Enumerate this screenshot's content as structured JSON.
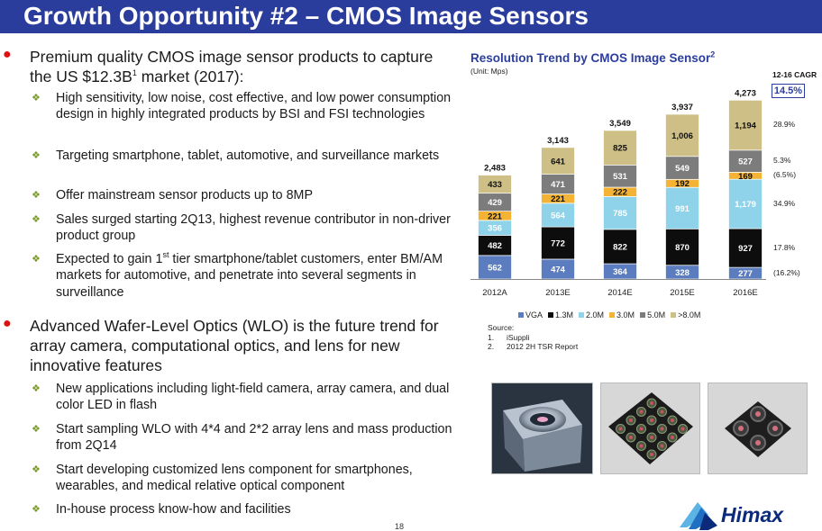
{
  "title": "Growth Opportunity #2 – CMOS Image Sensors",
  "bullets": [
    {
      "pre": "Premium quality CMOS image sensor products to capture the US $12.3B",
      "sup": "1",
      "post": " market (2017):",
      "subs": [
        {
          "pre": "High sensitivity, low noise, cost effective, and low power consumption design in highly integrated products by BSI and FSI technologies"
        },
        {
          "pre": "Targeting smartphone, tablet, automotive, and surveillance markets"
        },
        {
          "pre": "Offer mainstream sensor products up to 8MP"
        },
        {
          "pre": "Sales surged starting 2Q13, highest revenue contributor in non-driver product group"
        },
        {
          "pre": "Expected to gain 1",
          "sup": "st",
          "post": " tier smartphone/tablet customers, enter BM/AM markets for automotive, and penetrate into several segments in surveillance"
        }
      ]
    },
    {
      "pre": "Advanced Wafer-Level Optics (WLO) is the future trend for array camera, computational optics, and lens for new innovative features",
      "subs": [
        {
          "pre": "New applications including light-field camera, array camera, and dual color LED in flash"
        },
        {
          "pre": "Start sampling WLO with 4*4 and 2*2 array lens and mass production from 2Q14"
        },
        {
          "pre": "Start developing customized lens component for smartphones, wearables, and medical relative optical component"
        },
        {
          "pre": "In-house process know-how and facilities"
        }
      ]
    }
  ],
  "chart_data": {
    "type": "bar",
    "stacked": true,
    "title": "Resolution Trend by CMOS Image Sensor",
    "title_sup": "2",
    "unit": "(Unit: Mps)",
    "categories": [
      "2012A",
      "2013E",
      "2014E",
      "2015E",
      "2016E"
    ],
    "totals": [
      "2,483",
      "3,143",
      "3,549",
      "3,937",
      "4,273"
    ],
    "series": [
      {
        "name": "VGA",
        "color": "#5b7dbf",
        "values": [
          562,
          474,
          364,
          328,
          277
        ],
        "labels": [
          "562",
          "474",
          "364",
          "328",
          "277"
        ]
      },
      {
        "name": "1.3M",
        "color": "#0d0d0d",
        "values": [
          482,
          772,
          822,
          870,
          927
        ],
        "labels": [
          "482",
          "772",
          "822",
          "870",
          "927"
        ]
      },
      {
        "name": "2.0M",
        "color": "#8ed3ea",
        "values": [
          356,
          564,
          785,
          991,
          1179
        ],
        "labels": [
          "356",
          "564",
          "785",
          "991",
          "1,179"
        ]
      },
      {
        "name": "3.0M",
        "color": "#f5b335",
        "values": [
          221,
          221,
          222,
          192,
          169
        ],
        "labels": [
          "221",
          "221",
          "222",
          "192",
          "169"
        ]
      },
      {
        "name": "5.0M",
        "color": "#7c7c7c",
        "values": [
          429,
          471,
          531,
          549,
          527
        ],
        "labels": [
          "429",
          "471",
          "531",
          "549",
          "527"
        ]
      },
      {
        "name": ">8.0M",
        "color": "#cdbf85",
        "values": [
          433,
          641,
          825,
          1006,
          1194
        ],
        "labels": [
          "433",
          "641",
          "825",
          "1,006",
          "1,194"
        ]
      }
    ],
    "cagr_header": "12-16 CAGR",
    "cagr_total": "14.5%",
    "cagr": [
      {
        "series": "VGA",
        "value": "(16.2%)"
      },
      {
        "series": "1.3M",
        "value": "17.8%"
      },
      {
        "series": "2.0M",
        "value": "34.9%"
      },
      {
        "series": "3.0M",
        "value": "(6.5%)"
      },
      {
        "series": "5.0M",
        "value": "5.3%"
      },
      {
        "series": ">8.0M",
        "value": "28.9%"
      }
    ]
  },
  "source": {
    "label": "Source:",
    "items": [
      {
        "num": "1.",
        "text": "iSuppli"
      },
      {
        "num": "2.",
        "text": "2012 2H TSR Report"
      }
    ]
  },
  "page_number": "18",
  "logo_text": "Himax"
}
